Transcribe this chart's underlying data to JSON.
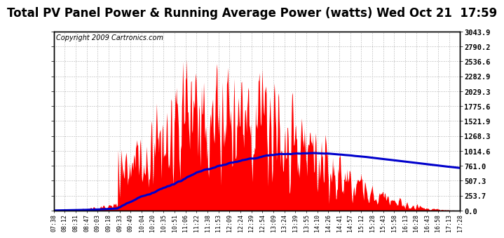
{
  "title": "Total PV Panel Power & Running Average Power (watts) Wed Oct 21  17:59",
  "copyright": "Copyright 2009 Cartronics.com",
  "ylabel_right": [
    "3043.9",
    "2790.2",
    "2536.6",
    "2282.9",
    "2029.3",
    "1775.6",
    "1521.9",
    "1268.3",
    "1014.6",
    "761.0",
    "507.3",
    "253.7",
    "0.0"
  ],
  "ymax": 3043.9,
  "ymin": 0.0,
  "yticks": [
    3043.9,
    2790.2,
    2536.6,
    2282.9,
    2029.3,
    1775.6,
    1521.9,
    1268.3,
    1014.6,
    761.0,
    507.3,
    253.7,
    0.0
  ],
  "xtick_labels": [
    "07:38",
    "08:12",
    "08:31",
    "08:47",
    "09:03",
    "09:18",
    "09:33",
    "09:49",
    "10:04",
    "10:20",
    "10:35",
    "10:51",
    "11:06",
    "11:22",
    "11:38",
    "11:53",
    "12:09",
    "12:24",
    "12:39",
    "12:54",
    "13:09",
    "13:24",
    "13:39",
    "13:55",
    "14:10",
    "14:26",
    "14:41",
    "14:57",
    "15:12",
    "15:28",
    "15:43",
    "15:58",
    "16:13",
    "16:28",
    "16:43",
    "16:58",
    "17:13",
    "17:28"
  ],
  "background_color": "#ffffff",
  "fill_color": "#ff0000",
  "line_color": "#0000cc",
  "grid_color": "#aaaaaa",
  "title_fontsize": 12,
  "copyright_fontsize": 7,
  "n_xticks": 38
}
